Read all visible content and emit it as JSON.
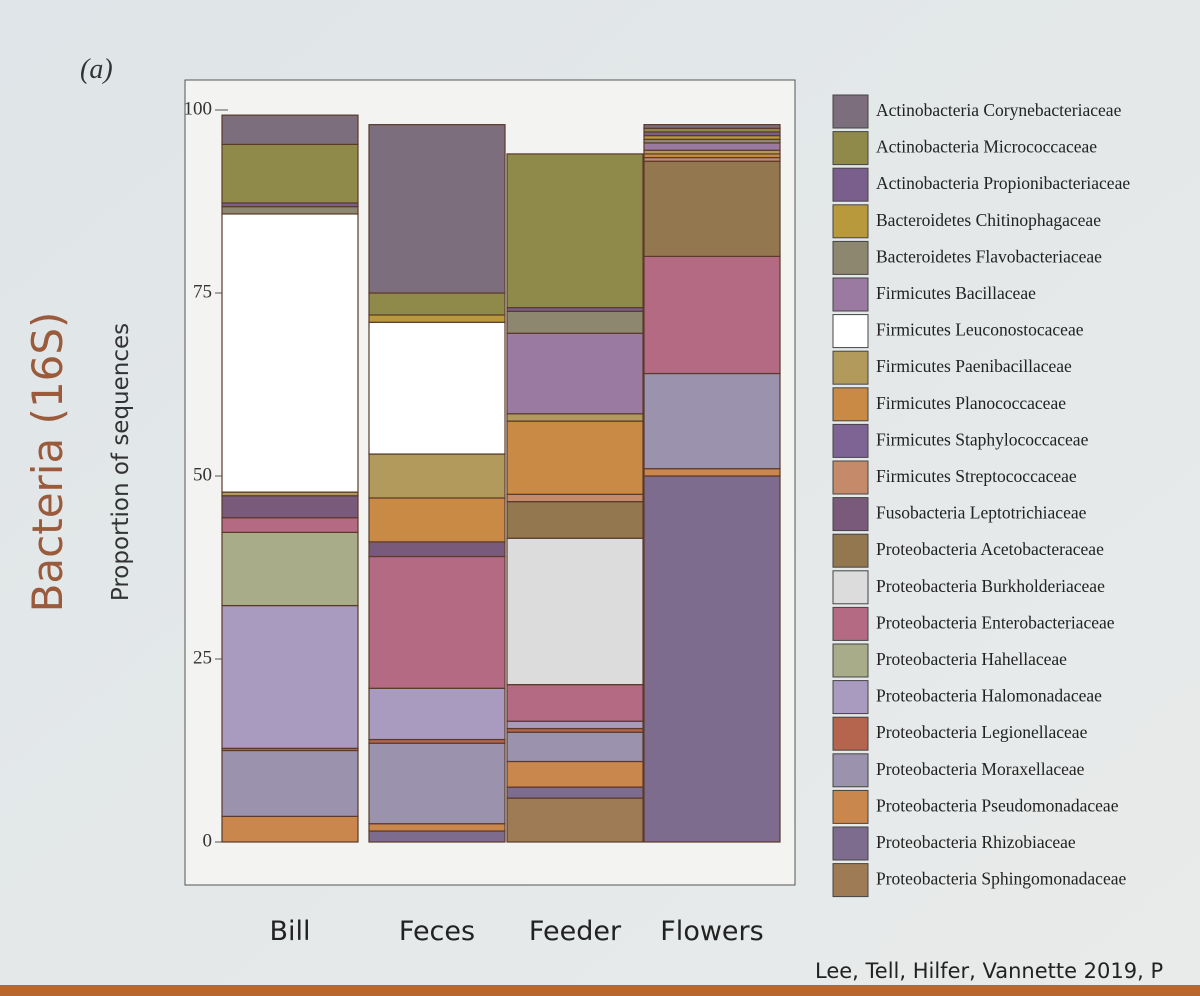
{
  "chart_data": {
    "type": "stacked_bar",
    "panel_label": "(a)",
    "title": "Bacteria (16S)",
    "y_label": "Proportion of sequences",
    "citation": "Lee, Tell, Hilfer, Vannette 2019, P",
    "categories": [
      "Bill",
      "Feces",
      "Feeder",
      "Flowers"
    ],
    "ylim": [
      0,
      100
    ],
    "yticks": [
      0,
      25,
      50,
      75,
      100
    ],
    "series": [
      {
        "name": "Actinobacteria Corynebacteriaceae",
        "color": "#7d6e7e",
        "values": [
          4,
          23,
          0,
          0.5
        ]
      },
      {
        "name": "Actinobacteria Micrococcaceae",
        "color": "#8f8a4a",
        "values": [
          8,
          3,
          21,
          0.5
        ]
      },
      {
        "name": "Actinobacteria Propionibacteriaceae",
        "color": "#7a5f8c",
        "values": [
          0.5,
          0,
          0.5,
          0.5
        ]
      },
      {
        "name": "Bacteroidetes Chitinophagaceae",
        "color": "#b89a3c",
        "values": [
          0,
          1,
          0,
          0.5
        ]
      },
      {
        "name": "Bacteroidetes Flavobacteriaceae",
        "color": "#8e8770",
        "values": [
          1,
          0,
          3,
          0.5
        ]
      },
      {
        "name": "Firmicutes Bacillaceae",
        "color": "#9a7aa0",
        "values": [
          0,
          0,
          11,
          1
        ]
      },
      {
        "name": "Firmicutes Leuconostocaceae",
        "color": "#ffffff",
        "values": [
          38,
          18,
          0,
          0
        ]
      },
      {
        "name": "Firmicutes Paenibacillaceae",
        "color": "#b29a5c",
        "values": [
          0.5,
          6,
          1,
          0.5
        ]
      },
      {
        "name": "Firmicutes Planococcaceae",
        "color": "#c88a45",
        "values": [
          0,
          6,
          10,
          0.5
        ]
      },
      {
        "name": "Firmicutes Staphylococcaceae",
        "color": "#7d6494",
        "values": [
          0,
          0,
          0,
          0
        ]
      },
      {
        "name": "Firmicutes Streptococcaceae",
        "color": "#c48a6a",
        "values": [
          0,
          0,
          1,
          0.5
        ]
      },
      {
        "name": "Fusobacteria Leptotrichiaceae",
        "color": "#7a5a7a",
        "values": [
          3,
          2,
          0,
          0
        ]
      },
      {
        "name": "Proteobacteria Acetobacteraceae",
        "color": "#93774e",
        "values": [
          0,
          0,
          5,
          13
        ]
      },
      {
        "name": "Proteobacteria Burkholderiaceae",
        "color": "#dcdcdc",
        "values": [
          0,
          0,
          20,
          0
        ]
      },
      {
        "name": "Proteobacteria Enterobacteriaceae",
        "color": "#b56a84",
        "values": [
          2,
          18,
          5,
          16
        ]
      },
      {
        "name": "Proteobacteria Hahellaceae",
        "color": "#a9ac88",
        "values": [
          10,
          0,
          0,
          0
        ]
      },
      {
        "name": "Proteobacteria Halomonadaceae",
        "color": "#a99ac0",
        "values": [
          19.5,
          7,
          1,
          0
        ]
      },
      {
        "name": "Proteobacteria Legionellaceae",
        "color": "#b5644e",
        "values": [
          0.3,
          0.5,
          0.5,
          0
        ]
      },
      {
        "name": "Proteobacteria Moraxellaceae",
        "color": "#9b92ad",
        "values": [
          9,
          11,
          4,
          13
        ]
      },
      {
        "name": "Proteobacteria Pseudomonadaceae",
        "color": "#c9874e",
        "values": [
          3.5,
          1,
          3.5,
          1
        ]
      },
      {
        "name": "Proteobacteria Rhizobiaceae",
        "color": "#7d6c8e",
        "values": [
          0,
          1.5,
          1.5,
          50
        ]
      },
      {
        "name": "Proteobacteria Sphingomonadaceae",
        "color": "#9e7b55",
        "values": [
          0,
          0,
          6,
          0
        ]
      }
    ]
  }
}
